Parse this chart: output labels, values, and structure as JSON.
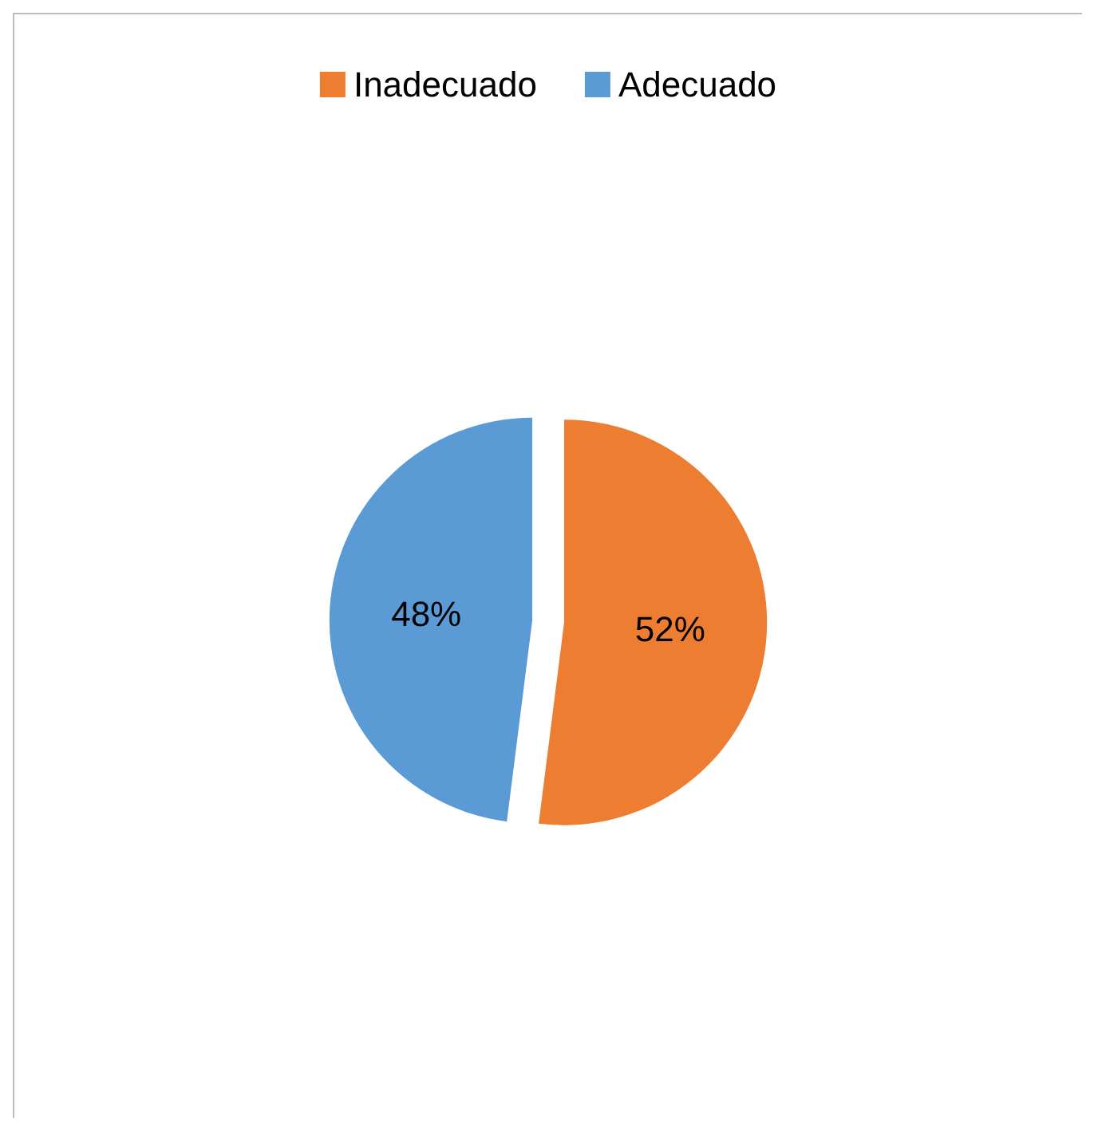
{
  "chart_data": {
    "type": "pie",
    "categories": [
      "Inadecuado",
      "Adecuado"
    ],
    "values": [
      52,
      48
    ],
    "colors": [
      "#ed7d31",
      "#5b9bd5"
    ],
    "value_labels": [
      "52%",
      "48%"
    ],
    "legend": "top"
  }
}
